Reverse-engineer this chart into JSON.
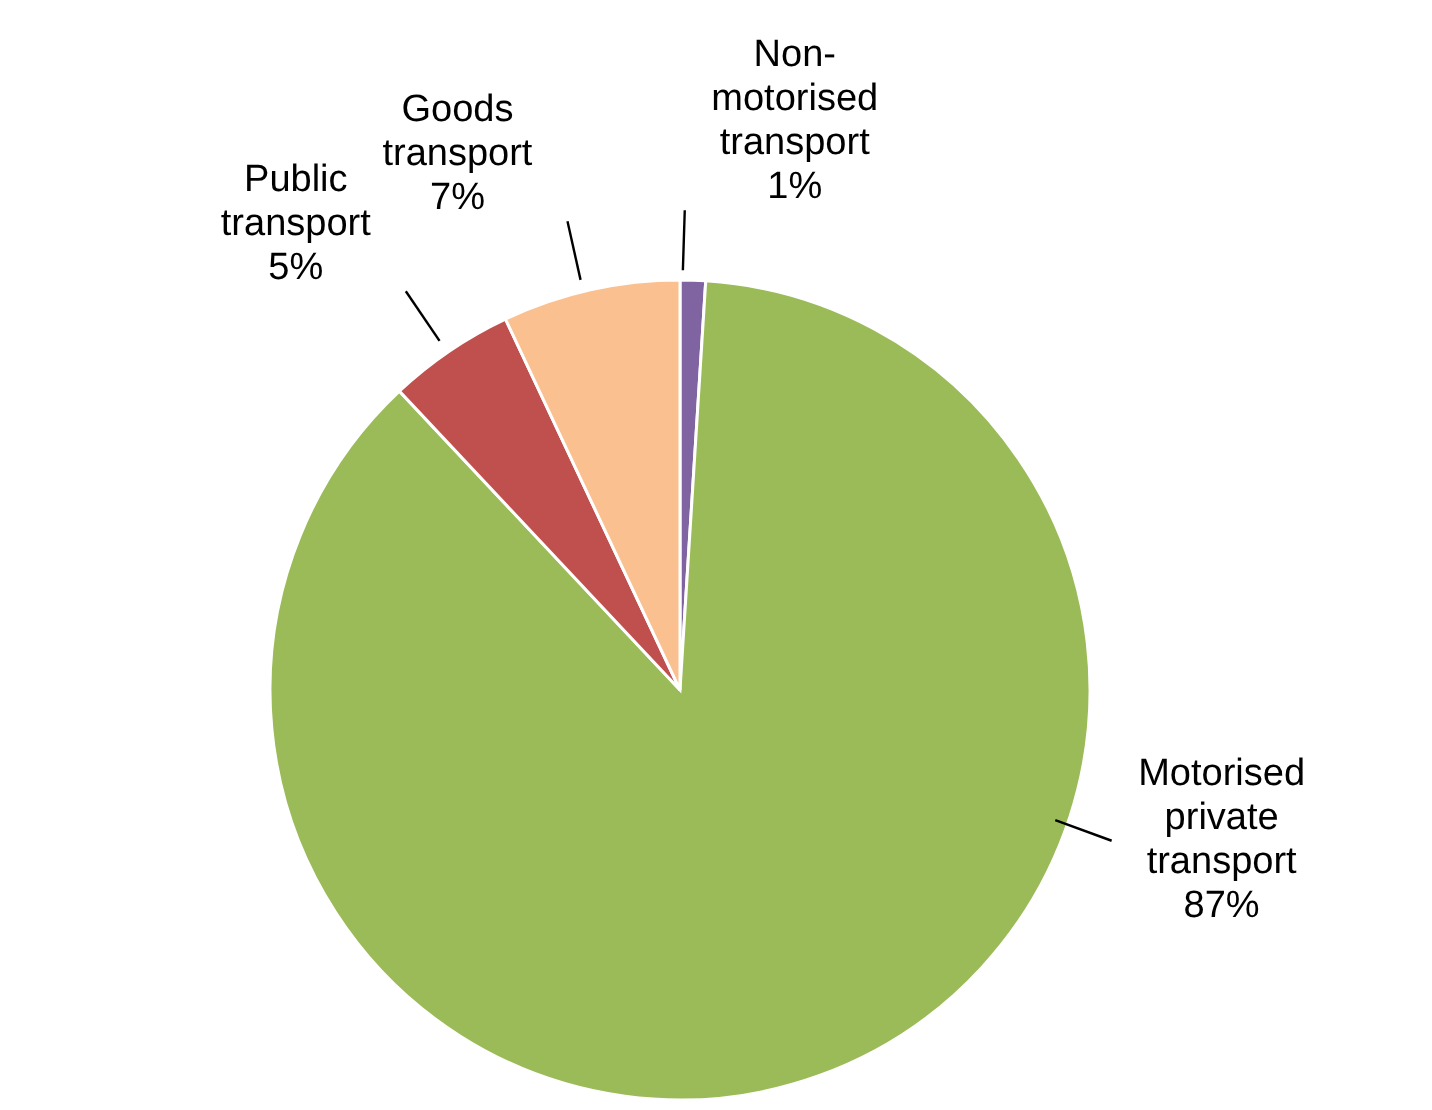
{
  "chart_data": {
    "type": "pie",
    "categories": [
      "Non-motorised transport",
      "Motorised private transport",
      "Public transport",
      "Goods transport"
    ],
    "values": [
      1,
      87,
      5,
      7
    ],
    "colors": [
      "#8064a2",
      "#9bbb59",
      "#c0504d",
      "#fac090"
    ],
    "value_labels": [
      "1%",
      "87%",
      "5%",
      "7%"
    ]
  }
}
